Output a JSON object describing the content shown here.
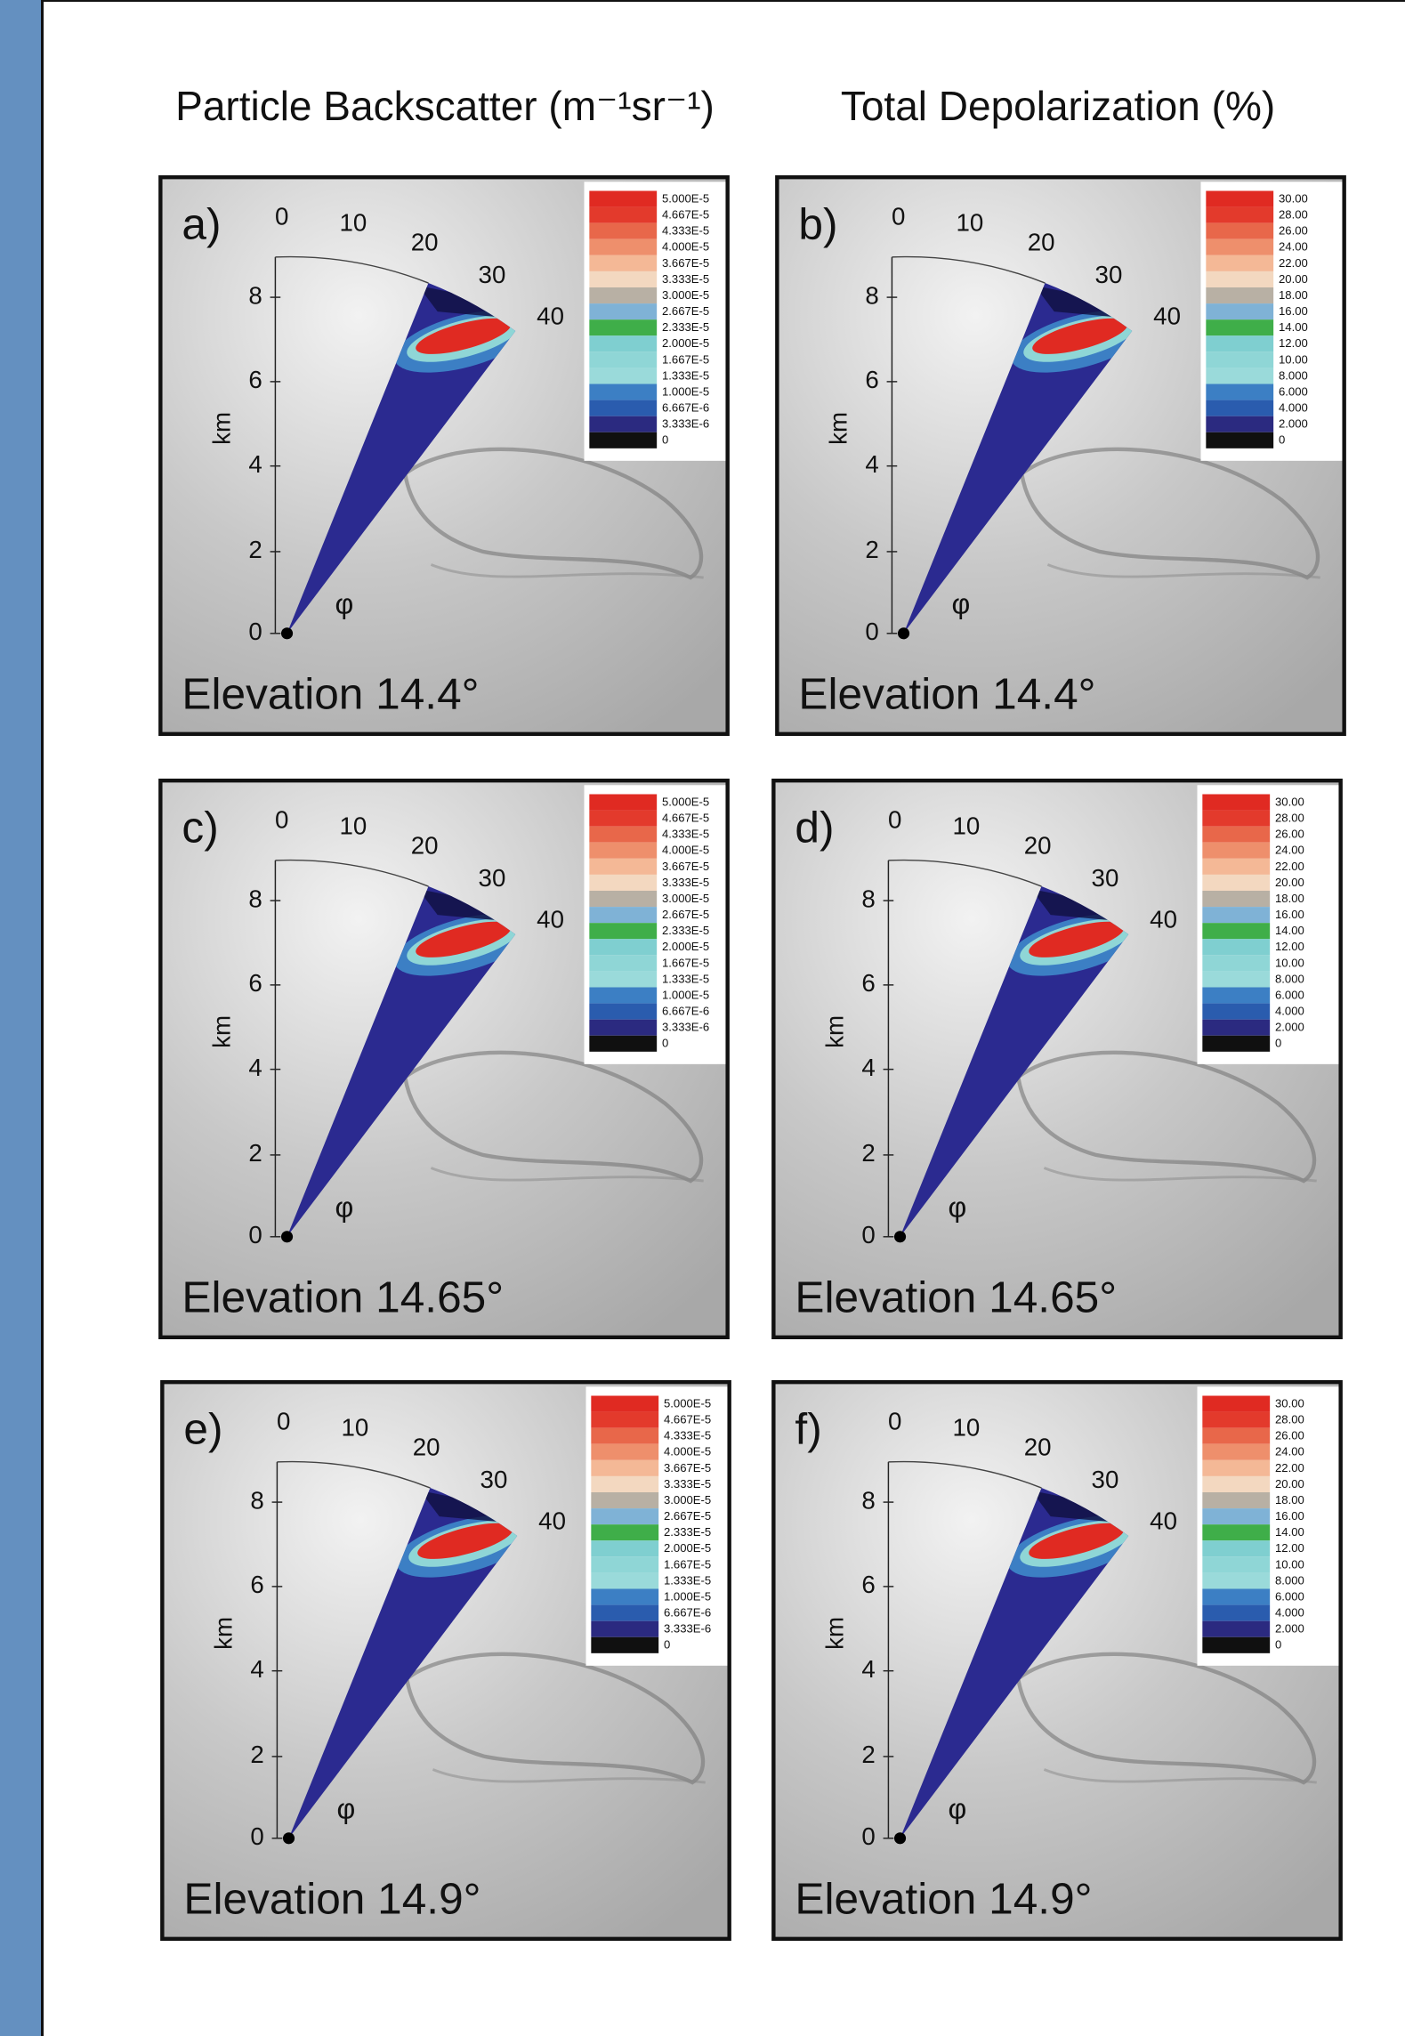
{
  "headers": [
    "Particle Backscatter (m⁻¹sr⁻¹)",
    "Total Depolarization (%)"
  ],
  "axis_label": "km",
  "azimuth_symbol": "φ",
  "range_ticks": [
    0,
    2,
    4,
    6,
    8
  ],
  "angle_ticks": [
    0,
    10,
    20,
    30,
    40
  ],
  "legend_colors": [
    "#e02a22",
    "#e33a2c",
    "#e8674a",
    "#ee8f6c",
    "#f4b896",
    "#f3d8c0",
    "#b8b0a4",
    "#7fb2d6",
    "#3fae49",
    "#7fcfd0",
    "#8fd6d6",
    "#9adada",
    "#3c7fc4",
    "#2a5cae",
    "#2b2a80",
    "#101010"
  ],
  "legends": {
    "backscatter": [
      "5.000E-5",
      "4.667E-5",
      "4.333E-5",
      "4.000E-5",
      "3.667E-5",
      "3.333E-5",
      "3.000E-5",
      "2.667E-5",
      "2.333E-5",
      "2.000E-5",
      "1.667E-5",
      "1.333E-5",
      "1.000E-5",
      "6.667E-6",
      "3.333E-6",
      "0"
    ],
    "depolarization": [
      "30.00",
      "28.00",
      "26.00",
      "24.00",
      "22.00",
      "20.00",
      "18.00",
      "16.00",
      "14.00",
      "12.00",
      "10.00",
      "8.000",
      "6.000",
      "4.000",
      "2.000",
      "0"
    ]
  },
  "panels": [
    {
      "label": "a)",
      "elevation": "Elevation 14.4°"
    },
    {
      "label": "b)",
      "elevation": "Elevation 14.4°"
    },
    {
      "label": "c)",
      "elevation": "Elevation 14.65°"
    },
    {
      "label": "d)",
      "elevation": "Elevation 14.65°"
    },
    {
      "label": "e)",
      "elevation": "Elevation 14.9°"
    },
    {
      "label": "f)",
      "elevation": "Elevation 14.9°"
    }
  ]
}
